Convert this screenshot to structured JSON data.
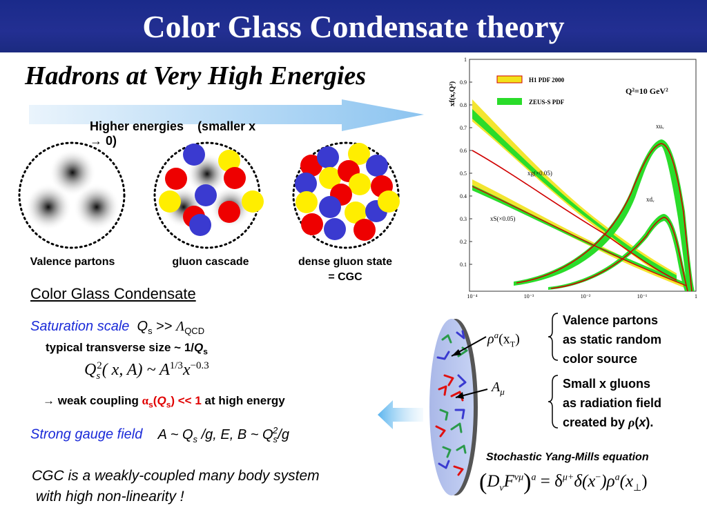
{
  "title": "Color Glass Condensate theory",
  "subtitle": "Hadrons at Very High Energies",
  "arrow_banner": {
    "text": "Higher energies    (smaller x",
    "arrow_glyph": "→",
    "tail": " 0)"
  },
  "hadron_labels": [
    "Valence partons",
    "gluon cascade",
    "dense gluon state",
    "= CGC"
  ],
  "cgc_heading": "Color Glass Condensate",
  "saturation": {
    "label": "Saturation scale",
    "Q": "Q",
    "s_sub": "s",
    "gg": " >> ",
    "Lambda": "Λ",
    "qcd_sub": "QCD",
    "typical": "typical transverse size ~ 1/",
    "typical_Q": "Q",
    "typical_s": "s"
  },
  "qs_formula": {
    "Q": "Q",
    "s": "s",
    "two": "2",
    "args": "( x, A) ~ A",
    "one_third": "1/3",
    "x": "x",
    "exp": "−0.3"
  },
  "weak_coupling": {
    "arrow": "→",
    "pre": " weak coupling ",
    "alpha": "α",
    "alpha_sub": "s",
    "paren_open": "(",
    "Q": "Q",
    "Q_sub": "s",
    "paren_close": ") << 1",
    "post": " at high energy"
  },
  "strong_field": {
    "label": "Strong gauge field",
    "A": "A ~ Q",
    "A_sub": "s",
    "A_rest": " /g,   E, B ~ Q",
    "B_sub": "s",
    "B_sup": "2",
    "B_rest": "/g"
  },
  "conclusion": [
    "CGC is a weakly-coupled many body system",
    " with high non-linearity !"
  ],
  "right_notes": {
    "valence": [
      "Valence partons",
      "as static random",
      "color source"
    ],
    "small_x": [
      "Small x gluons",
      "as radiation field",
      "created by "
    ],
    "rho": "ρ",
    "rho_arg": "x",
    "rho_tail": ")."
  },
  "disk_labels": {
    "rho": "ρ",
    "rho_sup": "a",
    "rho_arg": "(x",
    "rho_sub": "T",
    "A": "A",
    "A_sub": "μ"
  },
  "ym": {
    "label": "Stochastic Yang-Mills equation",
    "lhs_D": "D",
    "lhs_nu": "ν",
    "lhs_F": "F",
    "lhs_sup": "νμ",
    "lhs_a": "a",
    "eq": " = δ",
    "delta_sup": "μ+",
    "delta": "δ(x",
    "minus": "−",
    "rho": ")ρ",
    "rho_a": "a",
    "tail": "(x",
    "perp": "⊥",
    "close": ")"
  },
  "pdf_chart": {
    "ylabel": "xf(x,Q²)",
    "legend": [
      "H1 PDF 2000",
      "ZEUS-S PDF"
    ],
    "q2_label": "Q²=10 GeV²",
    "curve_labels": [
      "xuᵥ",
      "xg(×0.05)",
      "xdᵥ",
      "xS(×0.05)"
    ],
    "yticks": [
      "1",
      "0.9",
      "0.8",
      "0.7",
      "0.6",
      "0.5",
      "0.4",
      "0.3",
      "0.2",
      "0.1"
    ],
    "xticks": [
      "10⁻⁴",
      "10⁻³",
      "10⁻²",
      "10⁻¹",
      "1"
    ],
    "colors": {
      "h1": "#f2e21a",
      "zeus": "#2adc2a",
      "red": "#d00000"
    }
  }
}
